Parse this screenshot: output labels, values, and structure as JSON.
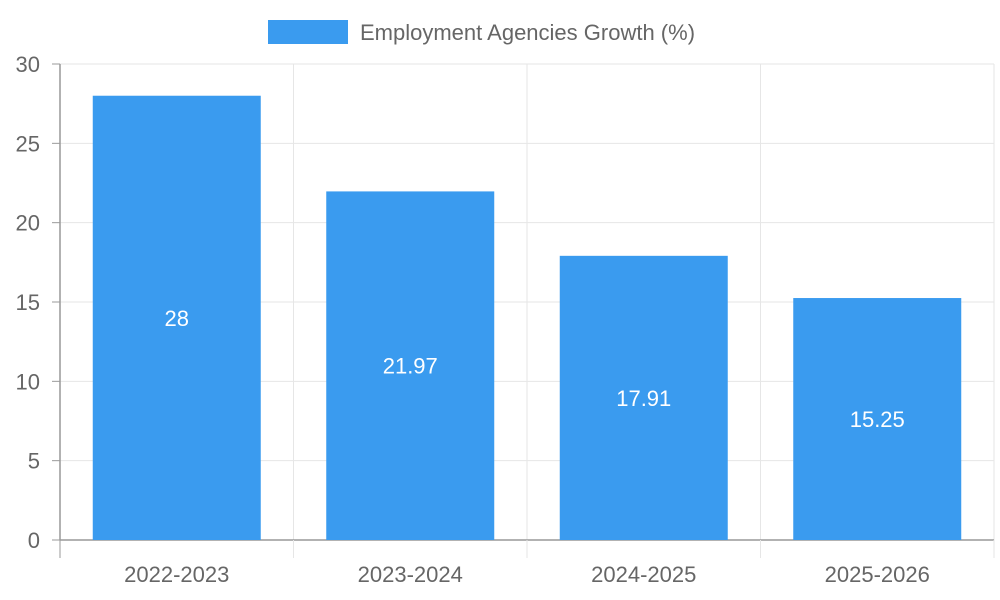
{
  "chart_data": {
    "type": "bar",
    "categories": [
      "2022-2023",
      "2023-2024",
      "2024-2025",
      "2025-2026"
    ],
    "series": [
      {
        "name": "Employment Agencies Growth (%)",
        "values": [
          28,
          21.97,
          17.91,
          15.25
        ],
        "value_labels": [
          "28",
          "21.97",
          "17.91",
          "15.25"
        ],
        "color": "#3a9bef"
      }
    ],
    "ylim": [
      0,
      30
    ],
    "yticks": [
      0,
      5,
      10,
      15,
      20,
      25,
      30
    ],
    "grid": true,
    "legend_position": "top",
    "colors": {
      "grid": "#e6e6e6",
      "axis": "#999999",
      "text": "#666666",
      "bar": "#3a9bef",
      "bar_label": "#ffffff"
    }
  }
}
